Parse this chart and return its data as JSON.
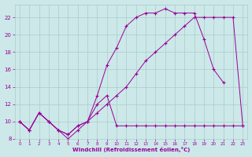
{
  "line1": {
    "x": [
      0,
      1,
      2,
      3,
      4,
      5,
      6,
      7,
      8,
      9,
      10,
      11,
      12,
      13,
      14,
      15,
      16,
      17,
      18,
      19,
      20,
      21
    ],
    "y": [
      10,
      9,
      11,
      10,
      9,
      8,
      9,
      10,
      13,
      16.5,
      18.5,
      21,
      22,
      22.5,
      22.5,
      23,
      22.5,
      22.5,
      22.5,
      19.5,
      16,
      14.5
    ]
  },
  "line2": {
    "x": [
      0,
      1,
      2,
      3,
      4,
      5,
      6,
      7,
      8,
      9,
      10,
      11,
      12,
      13,
      14,
      15,
      16,
      17,
      18,
      19,
      20,
      21,
      22,
      23
    ],
    "y": [
      10,
      9,
      11,
      10,
      9,
      8.5,
      9.5,
      10,
      11,
      12,
      13,
      14,
      15.5,
      17,
      18,
      19,
      20,
      21,
      22,
      22,
      22,
      22,
      22,
      9.5
    ]
  },
  "line3": {
    "x": [
      0,
      1,
      2,
      3,
      4,
      5,
      6,
      7,
      8,
      9,
      10,
      11,
      12,
      13,
      14,
      15,
      16,
      17,
      18,
      19,
      20,
      21,
      22,
      23
    ],
    "y": [
      10,
      9,
      11,
      10,
      9,
      8.5,
      9.5,
      10,
      12,
      13,
      9.5,
      9.5,
      9.5,
      9.5,
      9.5,
      9.5,
      9.5,
      9.5,
      9.5,
      9.5,
      9.5,
      9.5,
      9.5,
      9.5
    ]
  },
  "color": "#990099",
  "bg_color": "#cce8e8",
  "grid_color": "#aacccc",
  "xlabel": "Windchill (Refroidissement éolien,°C)",
  "xlim": [
    -0.5,
    23.5
  ],
  "ylim": [
    8,
    23.5
  ],
  "yticks": [
    8,
    10,
    12,
    14,
    16,
    18,
    20,
    22
  ],
  "xticks": [
    0,
    1,
    2,
    3,
    4,
    5,
    6,
    7,
    8,
    9,
    10,
    11,
    12,
    13,
    14,
    15,
    16,
    17,
    18,
    19,
    20,
    21,
    22,
    23
  ]
}
